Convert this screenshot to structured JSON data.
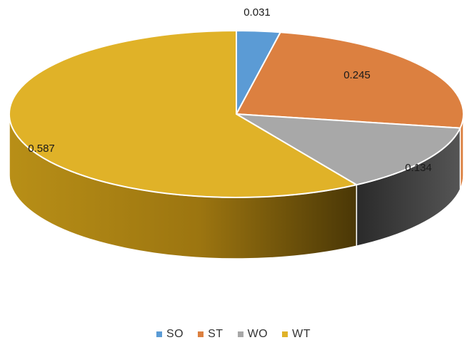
{
  "chart_data": {
    "type": "pie",
    "variant": "3d",
    "title": "",
    "slices": [
      {
        "name": "SO",
        "value": 0.031,
        "label": "0.031",
        "color": "#5b9bd5"
      },
      {
        "name": "ST",
        "value": 0.245,
        "label": "0.245",
        "color": "#dc8040"
      },
      {
        "name": "WO",
        "value": 0.134,
        "label": "0.134",
        "color": "#a8a8a8"
      },
      {
        "name": "WT",
        "value": 0.587,
        "label": "0.587",
        "color": "#e0b228"
      }
    ],
    "legend_position": "bottom"
  }
}
